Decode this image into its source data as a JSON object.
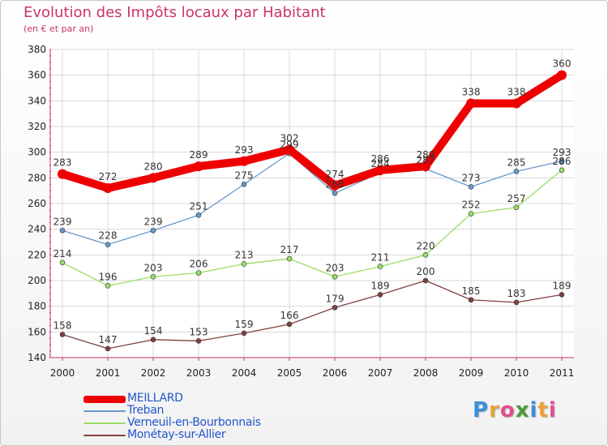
{
  "title": "Evolution des Impôts locaux par Habitant",
  "subtitle": "(en € et par an)",
  "logo": {
    "text": "Proxiti",
    "colors": [
      "#3a8fd8",
      "#e8a23a",
      "#e05090",
      "#4a9a3a",
      "#3a8fd8",
      "#e8a23a",
      "#e05090"
    ]
  },
  "chart_data": {
    "type": "line",
    "x": [
      "2000",
      "2001",
      "2002",
      "2003",
      "2004",
      "2005",
      "2006",
      "2007",
      "2008",
      "2009",
      "2010",
      "2011"
    ],
    "ylim": [
      140,
      380
    ],
    "yticks": [
      140,
      160,
      180,
      200,
      220,
      240,
      260,
      280,
      300,
      320,
      340,
      360,
      380
    ],
    "grid": true,
    "legend_position": "bottom-left",
    "series": [
      {
        "name": "MEILLARD",
        "color": "#ee0000",
        "values": [
          283,
          272,
          280,
          289,
          293,
          302,
          274,
          286,
          289,
          338,
          338,
          360
        ]
      },
      {
        "name": "Treban",
        "color": "#6699cc",
        "values": [
          239,
          228,
          239,
          251,
          275,
          299,
          268,
          284,
          287,
          273,
          285,
          293
        ]
      },
      {
        "name": "Verneuil-en-Bourbonnais",
        "color": "#99dd66",
        "values": [
          214,
          196,
          203,
          206,
          213,
          217,
          203,
          211,
          220,
          252,
          257,
          286
        ]
      },
      {
        "name": "Monétay-sur-Allier",
        "color": "#804040",
        "values": [
          158,
          147,
          154,
          153,
          159,
          166,
          179,
          189,
          200,
          185,
          183,
          189
        ]
      }
    ]
  }
}
